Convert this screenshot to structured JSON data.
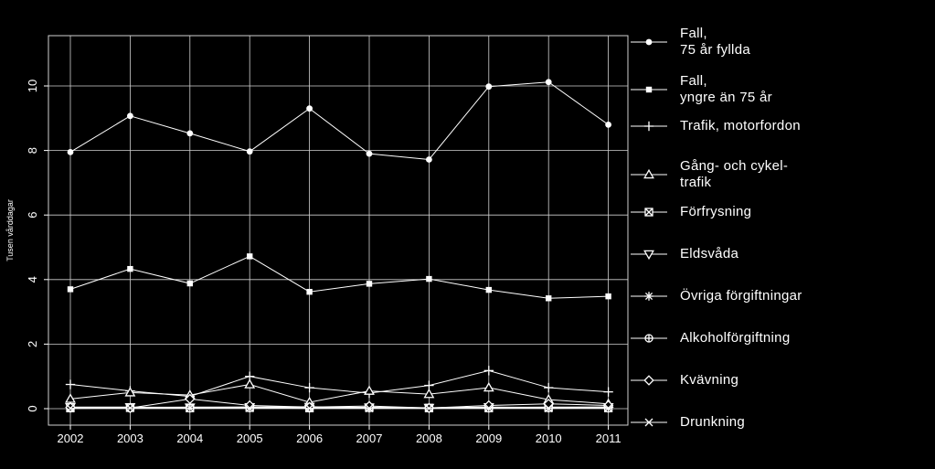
{
  "chart_data": {
    "type": "line",
    "title": "",
    "xlabel": "",
    "ylabel": "Tusen vårddagar",
    "x": [
      2002,
      2003,
      2004,
      2005,
      2006,
      2007,
      2008,
      2009,
      2010,
      2011
    ],
    "xticks": [
      "2002",
      "2003",
      "2004",
      "2005",
      "2006",
      "2007",
      "2008",
      "2009",
      "2010",
      "2011"
    ],
    "yticks": [
      "0",
      "2",
      "4",
      "6",
      "8",
      "10"
    ],
    "ylim": [
      0,
      11.5
    ],
    "grid": true,
    "legend_position": "right",
    "series": [
      {
        "name": "Fall,\n75 år fyllda",
        "marker": "filled-circle",
        "values": [
          7.95,
          9.07,
          8.53,
          7.97,
          9.3,
          7.9,
          7.72,
          9.98,
          10.12,
          8.8
        ]
      },
      {
        "name": "Fall,\nyngre än 75 år",
        "marker": "filled-square",
        "values": [
          3.7,
          4.33,
          3.88,
          4.72,
          3.62,
          3.87,
          4.02,
          3.68,
          3.42,
          3.48
        ]
      },
      {
        "name": "Trafik, motorfordon",
        "marker": "plus",
        "values": [
          0.75,
          0.55,
          0.38,
          1.0,
          0.65,
          0.48,
          0.72,
          1.18,
          0.65,
          0.52
        ]
      },
      {
        "name": "Gång- och cykel-\ntrafik",
        "marker": "triangle-up",
        "values": [
          0.3,
          0.5,
          0.42,
          0.75,
          0.2,
          0.55,
          0.45,
          0.65,
          0.28,
          0.15
        ]
      },
      {
        "name": "Förfrysning",
        "marker": "boxed-cross",
        "values": [
          0.02,
          0.03,
          0.02,
          0.03,
          0.02,
          0.03,
          0.02,
          0.02,
          0.03,
          0.02
        ]
      },
      {
        "name": "Eldsvåda",
        "marker": "triangle-down",
        "values": [
          0.05,
          0.05,
          0.04,
          0.05,
          0.06,
          0.04,
          0.03,
          0.05,
          0.04,
          0.05
        ]
      },
      {
        "name": "Övriga förgiftningar",
        "marker": "asterisk",
        "values": [
          0.02,
          0.04,
          0.05,
          0.05,
          0.03,
          0.04,
          0.03,
          0.04,
          0.05,
          0.05
        ]
      },
      {
        "name": "Alkoholförgiftning",
        "marker": "circle-plus",
        "values": [
          0.01,
          0.01,
          0.01,
          0.02,
          0.01,
          0.02,
          0.01,
          0.01,
          0.02,
          0.01
        ]
      },
      {
        "name": "Kvävning",
        "marker": "diamond",
        "values": [
          0.04,
          0.02,
          0.3,
          0.1,
          0.05,
          0.08,
          0.02,
          0.1,
          0.15,
          0.1
        ]
      },
      {
        "name": "Drunkning",
        "marker": "x",
        "values": [
          0.01,
          0.02,
          0.02,
          0.02,
          0.01,
          0.01,
          0.01,
          0.02,
          0.01,
          0.02
        ]
      }
    ]
  },
  "colors": {
    "background": "#000000",
    "foreground": "#ffffff",
    "grid": "#d0d0d0"
  }
}
